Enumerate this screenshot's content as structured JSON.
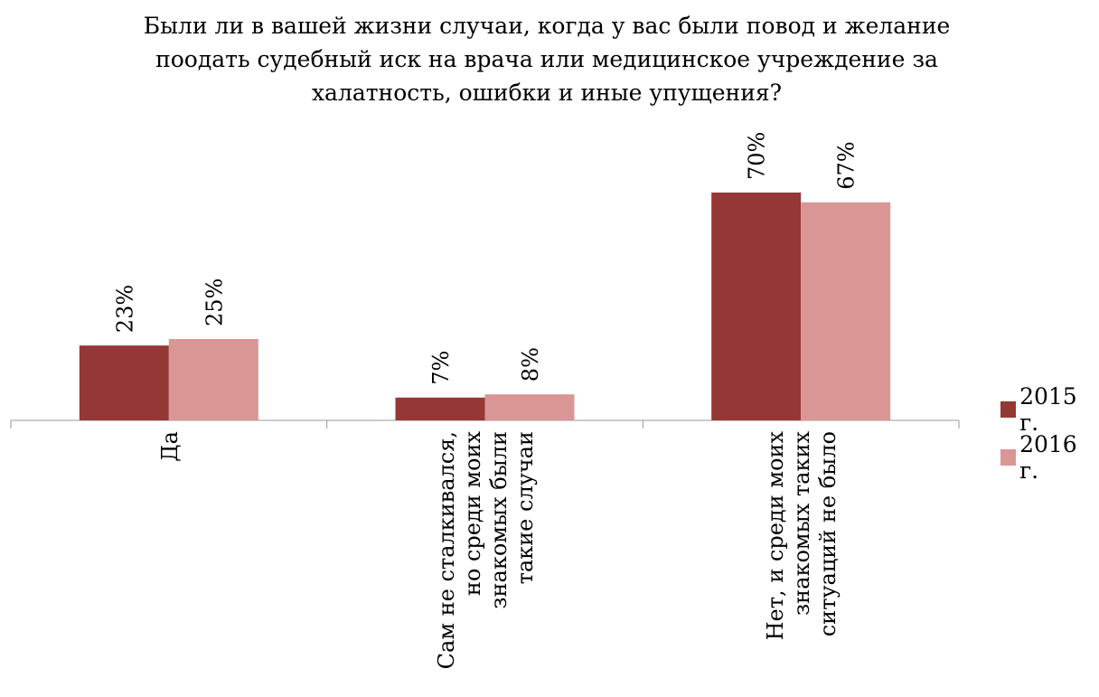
{
  "chart_data": {
    "type": "bar",
    "title_lines": [
      "Были ли в вашей жизни случаи, когда у вас были повод и желание",
      "поодать судебный иск на врача или медицинское учреждение за",
      "халатность, ошибки и иные упущения?"
    ],
    "categories": [
      [
        "Да"
      ],
      [
        "Сам не сталкивался,",
        "но среди моих",
        "знакомых были",
        "такие случаи"
      ],
      [
        "Нет, и среди моих",
        "знакомых таких",
        "ситуаций не было"
      ]
    ],
    "series": [
      {
        "name": "2015 г.",
        "values": [
          23,
          7,
          70
        ],
        "labels": [
          "23%",
          "7%",
          "70%"
        ],
        "color": "#953735"
      },
      {
        "name": "2016 г.",
        "values": [
          25,
          8,
          67
        ],
        "labels": [
          "25%",
          "8%",
          "67%"
        ],
        "color": "#D99694"
      }
    ],
    "ylim": [
      0,
      75
    ],
    "grid": false,
    "legend_position": "right"
  }
}
